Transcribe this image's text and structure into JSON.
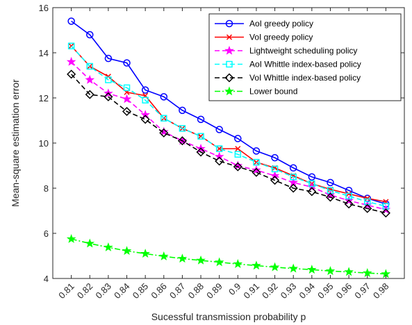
{
  "chart_data": {
    "type": "line",
    "xlabel": "Sucessful transmission probability p",
    "ylabel": "Mean-square estimation error",
    "x": [
      0.81,
      0.82,
      0.83,
      0.84,
      0.85,
      0.86,
      0.87,
      0.88,
      0.89,
      0.9,
      0.91,
      0.92,
      0.93,
      0.94,
      0.95,
      0.96,
      0.97,
      0.98
    ],
    "x_tick_labels": [
      "0.81",
      "0.82",
      "0.83",
      "0.84",
      "0.85",
      "0.86",
      "0.87",
      "0.88",
      "0.89",
      "0.9",
      "0.91",
      "0.92",
      "0.93",
      "0.94",
      "0.95",
      "0.96",
      "0.97",
      "0.98"
    ],
    "ylim": [
      4,
      16
    ],
    "y_ticks": [
      4,
      6,
      8,
      10,
      12,
      14,
      16
    ],
    "y_tick_labels": [
      "4",
      "6",
      "8",
      "10",
      "12",
      "14",
      "16"
    ],
    "grid": false,
    "legend_position": "top-right",
    "series": [
      {
        "name": "AoI greedy policy",
        "color": "#0000ff",
        "dash": "solid",
        "marker": "circle",
        "values": [
          15.4,
          14.8,
          13.75,
          13.55,
          12.35,
          12.05,
          11.45,
          11.05,
          10.6,
          10.2,
          9.65,
          9.35,
          8.9,
          8.5,
          8.25,
          7.9,
          7.55,
          7.3
        ]
      },
      {
        "name": "VoI greedy policy",
        "color": "#ff0000",
        "dash": "solid",
        "marker": "x",
        "values": [
          14.3,
          13.4,
          12.95,
          12.25,
          12.1,
          11.1,
          10.65,
          10.3,
          9.75,
          9.75,
          9.15,
          8.9,
          8.55,
          8.2,
          7.95,
          7.75,
          7.55,
          7.4
        ]
      },
      {
        "name": "Lightweight scheduling policy",
        "color": "#ff00ff",
        "dash": "dashed",
        "marker": "star",
        "values": [
          13.6,
          12.8,
          12.2,
          11.95,
          11.25,
          10.5,
          10.1,
          9.75,
          9.4,
          9.0,
          8.8,
          8.55,
          8.25,
          8.05,
          7.7,
          7.45,
          7.25,
          7.05
        ]
      },
      {
        "name": "AoI Whittle index-based policy",
        "color": "#00ffff",
        "dash": "dashed",
        "marker": "square",
        "values": [
          14.3,
          13.4,
          12.8,
          12.45,
          11.9,
          11.1,
          10.65,
          10.3,
          9.75,
          9.5,
          9.15,
          8.85,
          8.5,
          8.2,
          7.9,
          7.65,
          7.4,
          7.2
        ]
      },
      {
        "name": "VoI Whittle index-based policy",
        "color": "#000000",
        "dash": "dashed",
        "marker": "diamond",
        "values": [
          13.05,
          12.15,
          12.05,
          11.4,
          11.05,
          10.45,
          10.1,
          9.6,
          9.2,
          8.95,
          8.7,
          8.35,
          8.0,
          7.85,
          7.6,
          7.3,
          7.1,
          6.9
        ]
      },
      {
        "name": "Lower bound",
        "color": "#00ff00",
        "dash": "dashdot",
        "marker": "star",
        "values": [
          5.75,
          5.55,
          5.38,
          5.22,
          5.1,
          4.98,
          4.88,
          4.8,
          4.72,
          4.64,
          4.57,
          4.5,
          4.44,
          4.39,
          4.33,
          4.29,
          4.24,
          4.2
        ]
      }
    ]
  }
}
